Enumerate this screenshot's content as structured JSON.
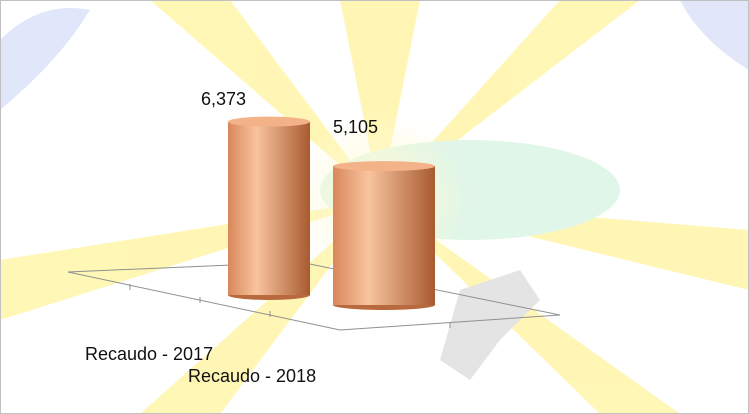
{
  "chart_data": {
    "type": "bar3d",
    "categories": [
      "Recaudo - 2017",
      "Recaudo - 2018"
    ],
    "values": [
      6373,
      5105
    ],
    "value_labels": [
      "6,373",
      "5,105"
    ],
    "color": "#e8955f"
  }
}
